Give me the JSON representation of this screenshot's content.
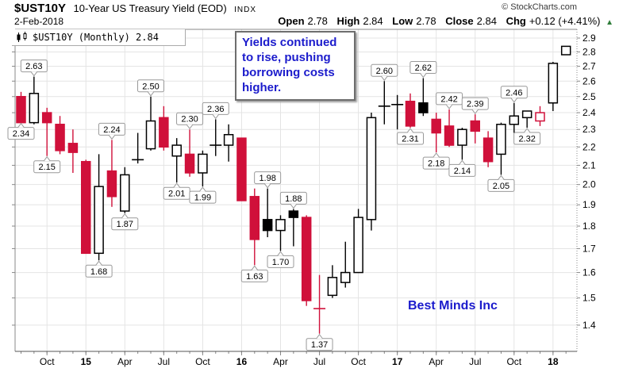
{
  "header": {
    "symbol": "$UST10Y",
    "title": "10-Year US Treasury Yield (EOD)",
    "exchange": "INDX",
    "date": "2-Feb-2018",
    "copyright": "© StockCharts.com",
    "quote": [
      {
        "label": "Open",
        "value": "2.78"
      },
      {
        "label": "High",
        "value": "2.84"
      },
      {
        "label": "Low",
        "value": "2.78"
      },
      {
        "label": "Close",
        "value": "2.84"
      },
      {
        "label": "Chg",
        "value": "+0.12 (+4.41%)"
      }
    ],
    "up_arrow": "▲"
  },
  "legend": {
    "text": "$UST10Y (Monthly) 2.84"
  },
  "annotation": {
    "lines": [
      "Yields continued",
      "to rise, pushing",
      "borrowing costs",
      "higher."
    ]
  },
  "watermark": "Best Minds Inc",
  "colors": {
    "down_candle_red": "#d0103a",
    "up_candle_outline": "#000000",
    "hollow_fill": "#ffffff",
    "annotation_blue": "#1b1bcc",
    "change_green": "#2f7d3a",
    "grid": "#e4e4e4",
    "axis": "#888888",
    "callout_border": "#999999",
    "copyright_gray": "#3a3a3a"
  },
  "chart_data": {
    "type": "candlestick",
    "title": "$UST10Y 10-Year US Treasury Yield (EOD) INDX",
    "timeframe": "Monthly",
    "y_axis": {
      "min": 1.4,
      "max": 2.9,
      "step": 0.1,
      "scale": "log",
      "side": "right",
      "ticks": [
        "2.9",
        "2.8",
        "2.7",
        "2.6",
        "2.5",
        "2.4",
        "2.3",
        "2.2",
        "2.1",
        "2.0",
        "1.9",
        "1.8",
        "1.7",
        "1.6",
        "1.5",
        "1.4"
      ]
    },
    "x_axis": {
      "ticks": [
        {
          "label": "Oct",
          "month": 2,
          "bold": false
        },
        {
          "label": "15",
          "month": 5,
          "bold": true
        },
        {
          "label": "Apr",
          "month": 8,
          "bold": false
        },
        {
          "label": "Jul",
          "month": 11,
          "bold": false
        },
        {
          "label": "Oct",
          "month": 14,
          "bold": false
        },
        {
          "label": "16",
          "month": 17,
          "bold": true
        },
        {
          "label": "Apr",
          "month": 20,
          "bold": false
        },
        {
          "label": "Jul",
          "month": 23,
          "bold": false
        },
        {
          "label": "Oct",
          "month": 26,
          "bold": false
        },
        {
          "label": "17",
          "month": 29,
          "bold": true
        },
        {
          "label": "Apr",
          "month": 32,
          "bold": false
        },
        {
          "label": "Jul",
          "month": 35,
          "bold": false
        },
        {
          "label": "Oct",
          "month": 38,
          "bold": false
        },
        {
          "label": "18",
          "month": 41,
          "bold": true
        }
      ]
    },
    "candles": [
      {
        "month": "Aug 2014",
        "o": 2.5,
        "h": 2.53,
        "l": 2.34,
        "c": 2.34,
        "color": "red",
        "fill": "solid"
      },
      {
        "month": "Sep 2014",
        "o": 2.34,
        "h": 2.63,
        "l": 2.33,
        "c": 2.52,
        "color": "black",
        "fill": "hollow"
      },
      {
        "month": "Oct 2014",
        "o": 2.4,
        "h": 2.43,
        "l": 2.15,
        "c": 2.34,
        "color": "red",
        "fill": "solid"
      },
      {
        "month": "Nov 2014",
        "o": 2.33,
        "h": 2.38,
        "l": 2.16,
        "c": 2.18,
        "color": "red",
        "fill": "solid"
      },
      {
        "month": "Dec 2014",
        "o": 2.22,
        "h": 2.3,
        "l": 2.06,
        "c": 2.17,
        "color": "red",
        "fill": "solid"
      },
      {
        "month": "Jan 2015",
        "o": 2.12,
        "h": 2.13,
        "l": 1.68,
        "c": 1.68,
        "color": "red",
        "fill": "solid"
      },
      {
        "month": "Feb 2015",
        "o": 1.68,
        "h": 2.16,
        "l": 1.65,
        "c": 1.99,
        "color": "black",
        "fill": "hollow"
      },
      {
        "month": "Mar 2015",
        "o": 2.07,
        "h": 2.24,
        "l": 1.89,
        "c": 1.94,
        "color": "red",
        "fill": "solid"
      },
      {
        "month": "Apr 2015",
        "o": 1.87,
        "h": 2.09,
        "l": 1.86,
        "c": 2.05,
        "color": "black",
        "fill": "hollow"
      },
      {
        "month": "May 2015",
        "o": 2.12,
        "h": 2.28,
        "l": 2.11,
        "c": 2.13,
        "color": "black",
        "fill": "hollow"
      },
      {
        "month": "Jun 2015",
        "o": 2.19,
        "h": 2.5,
        "l": 2.18,
        "c": 2.35,
        "color": "black",
        "fill": "hollow"
      },
      {
        "month": "Jul 2015",
        "o": 2.37,
        "h": 2.44,
        "l": 2.18,
        "c": 2.2,
        "color": "red",
        "fill": "solid"
      },
      {
        "month": "Aug 2015",
        "o": 2.15,
        "h": 2.25,
        "l": 2.01,
        "c": 2.21,
        "color": "black",
        "fill": "hollow"
      },
      {
        "month": "Sep 2015",
        "o": 2.16,
        "h": 2.3,
        "l": 2.04,
        "c": 2.06,
        "color": "red",
        "fill": "solid"
      },
      {
        "month": "Oct 2015",
        "o": 2.06,
        "h": 2.18,
        "l": 1.99,
        "c": 2.16,
        "color": "black",
        "fill": "hollow"
      },
      {
        "month": "Nov 2015",
        "o": 2.2,
        "h": 2.36,
        "l": 2.15,
        "c": 2.21,
        "color": "black",
        "fill": "hollow"
      },
      {
        "month": "Dec 2015",
        "o": 2.21,
        "h": 2.33,
        "l": 2.12,
        "c": 2.27,
        "color": "black",
        "fill": "hollow"
      },
      {
        "month": "Jan 2016",
        "o": 2.25,
        "h": 2.25,
        "l": 1.92,
        "c": 1.92,
        "color": "red",
        "fill": "solid"
      },
      {
        "month": "Feb 2016",
        "o": 1.94,
        "h": 1.98,
        "l": 1.63,
        "c": 1.74,
        "color": "red",
        "fill": "solid"
      },
      {
        "month": "Mar 2016",
        "o": 1.83,
        "h": 1.98,
        "l": 1.75,
        "c": 1.78,
        "color": "black",
        "fill": "solid"
      },
      {
        "month": "Apr 2016",
        "o": 1.78,
        "h": 1.85,
        "l": 1.69,
        "c": 1.83,
        "color": "black",
        "fill": "hollow"
      },
      {
        "month": "May 2016",
        "o": 1.87,
        "h": 1.88,
        "l": 1.71,
        "c": 1.84,
        "color": "black",
        "fill": "solid"
      },
      {
        "month": "Jun 2016",
        "o": 1.84,
        "h": 1.85,
        "l": 1.47,
        "c": 1.49,
        "color": "red",
        "fill": "solid"
      },
      {
        "month": "Jul 2016",
        "o": 1.45,
        "h": 1.59,
        "l": 1.37,
        "c": 1.46,
        "color": "red",
        "fill": "solid"
      },
      {
        "month": "Aug 2016",
        "o": 1.51,
        "h": 1.63,
        "l": 1.5,
        "c": 1.58,
        "color": "black",
        "fill": "hollow"
      },
      {
        "month": "Sep 2016",
        "o": 1.56,
        "h": 1.73,
        "l": 1.54,
        "c": 1.6,
        "color": "black",
        "fill": "hollow"
      },
      {
        "month": "Oct 2016",
        "o": 1.6,
        "h": 1.88,
        "l": 1.6,
        "c": 1.84,
        "color": "black",
        "fill": "hollow"
      },
      {
        "month": "Nov 2016",
        "o": 1.83,
        "h": 2.4,
        "l": 1.78,
        "c": 2.37,
        "color": "black",
        "fill": "hollow"
      },
      {
        "month": "Dec 2016",
        "o": 2.43,
        "h": 2.6,
        "l": 2.33,
        "c": 2.44,
        "color": "black",
        "fill": "hollow"
      },
      {
        "month": "Jan 2017",
        "o": 2.44,
        "h": 2.51,
        "l": 2.3,
        "c": 2.45,
        "color": "black",
        "fill": "hollow"
      },
      {
        "month": "Feb 2017",
        "o": 2.47,
        "h": 2.52,
        "l": 2.31,
        "c": 2.32,
        "color": "red",
        "fill": "solid"
      },
      {
        "month": "Mar 2017",
        "o": 2.46,
        "h": 2.62,
        "l": 2.38,
        "c": 2.4,
        "color": "black",
        "fill": "solid"
      },
      {
        "month": "Apr 2017",
        "o": 2.36,
        "h": 2.4,
        "l": 2.17,
        "c": 2.28,
        "color": "red",
        "fill": "solid"
      },
      {
        "month": "May 2017",
        "o": 2.32,
        "h": 2.42,
        "l": 2.2,
        "c": 2.21,
        "color": "red",
        "fill": "solid"
      },
      {
        "month": "Jun 2017",
        "o": 2.21,
        "h": 2.31,
        "l": 2.13,
        "c": 2.3,
        "color": "black",
        "fill": "hollow"
      },
      {
        "month": "Jul 2017",
        "o": 2.35,
        "h": 2.39,
        "l": 2.22,
        "c": 2.29,
        "color": "red",
        "fill": "solid"
      },
      {
        "month": "Aug 2017",
        "o": 2.25,
        "h": 2.29,
        "l": 2.09,
        "c": 2.12,
        "color": "red",
        "fill": "solid"
      },
      {
        "month": "Sep 2017",
        "o": 2.16,
        "h": 2.34,
        "l": 2.05,
        "c": 2.33,
        "color": "black",
        "fill": "hollow"
      },
      {
        "month": "Oct 2017",
        "o": 2.33,
        "h": 2.46,
        "l": 2.28,
        "c": 2.38,
        "color": "black",
        "fill": "hollow"
      },
      {
        "month": "Nov 2017",
        "o": 2.37,
        "h": 2.41,
        "l": 2.31,
        "c": 2.41,
        "color": "black",
        "fill": "hollow"
      },
      {
        "month": "Dec 2017",
        "o": 2.35,
        "h": 2.44,
        "l": 2.32,
        "c": 2.4,
        "color": "red",
        "fill": "hollow"
      },
      {
        "month": "Jan 2018",
        "o": 2.46,
        "h": 2.73,
        "l": 2.41,
        "c": 2.72,
        "color": "black",
        "fill": "hollow"
      },
      {
        "month": "Feb 2018",
        "o": 2.78,
        "h": 2.84,
        "l": 2.78,
        "c": 2.84,
        "color": "black",
        "fill": "hollow"
      }
    ],
    "callouts": [
      {
        "value": "2.34",
        "candle": 0,
        "side": "below"
      },
      {
        "value": "2.63",
        "candle": 1,
        "side": "above"
      },
      {
        "value": "2.15",
        "candle": 2,
        "side": "below"
      },
      {
        "value": "1.68",
        "candle": 6,
        "side": "below"
      },
      {
        "value": "2.24",
        "candle": 7,
        "side": "above"
      },
      {
        "value": "1.87",
        "candle": 8,
        "side": "below"
      },
      {
        "value": "2.50",
        "candle": 10,
        "side": "above"
      },
      {
        "value": "2.01",
        "candle": 12,
        "side": "below"
      },
      {
        "value": "2.30",
        "candle": 13,
        "side": "above"
      },
      {
        "value": "1.99",
        "candle": 14,
        "side": "below"
      },
      {
        "value": "2.36",
        "candle": 15,
        "side": "above"
      },
      {
        "value": "1.63",
        "candle": 18,
        "side": "below"
      },
      {
        "value": "1.98",
        "candle": 19,
        "side": "above"
      },
      {
        "value": "1.70",
        "candle": 20,
        "side": "below"
      },
      {
        "value": "1.88",
        "candle": 21,
        "side": "above"
      },
      {
        "value": "1.37",
        "candle": 23,
        "side": "below"
      },
      {
        "value": "2.60",
        "candle": 28,
        "side": "above"
      },
      {
        "value": "2.31",
        "candle": 30,
        "side": "below"
      },
      {
        "value": "2.62",
        "candle": 31,
        "side": "above"
      },
      {
        "value": "2.18",
        "candle": 32,
        "side": "below"
      },
      {
        "value": "2.42",
        "candle": 33,
        "side": "above"
      },
      {
        "value": "2.14",
        "candle": 34,
        "side": "below"
      },
      {
        "value": "2.39",
        "candle": 35,
        "side": "above"
      },
      {
        "value": "2.05",
        "candle": 37,
        "side": "below"
      },
      {
        "value": "2.46",
        "candle": 38,
        "side": "above"
      },
      {
        "value": "2.32",
        "candle": 39,
        "side": "below"
      }
    ]
  }
}
